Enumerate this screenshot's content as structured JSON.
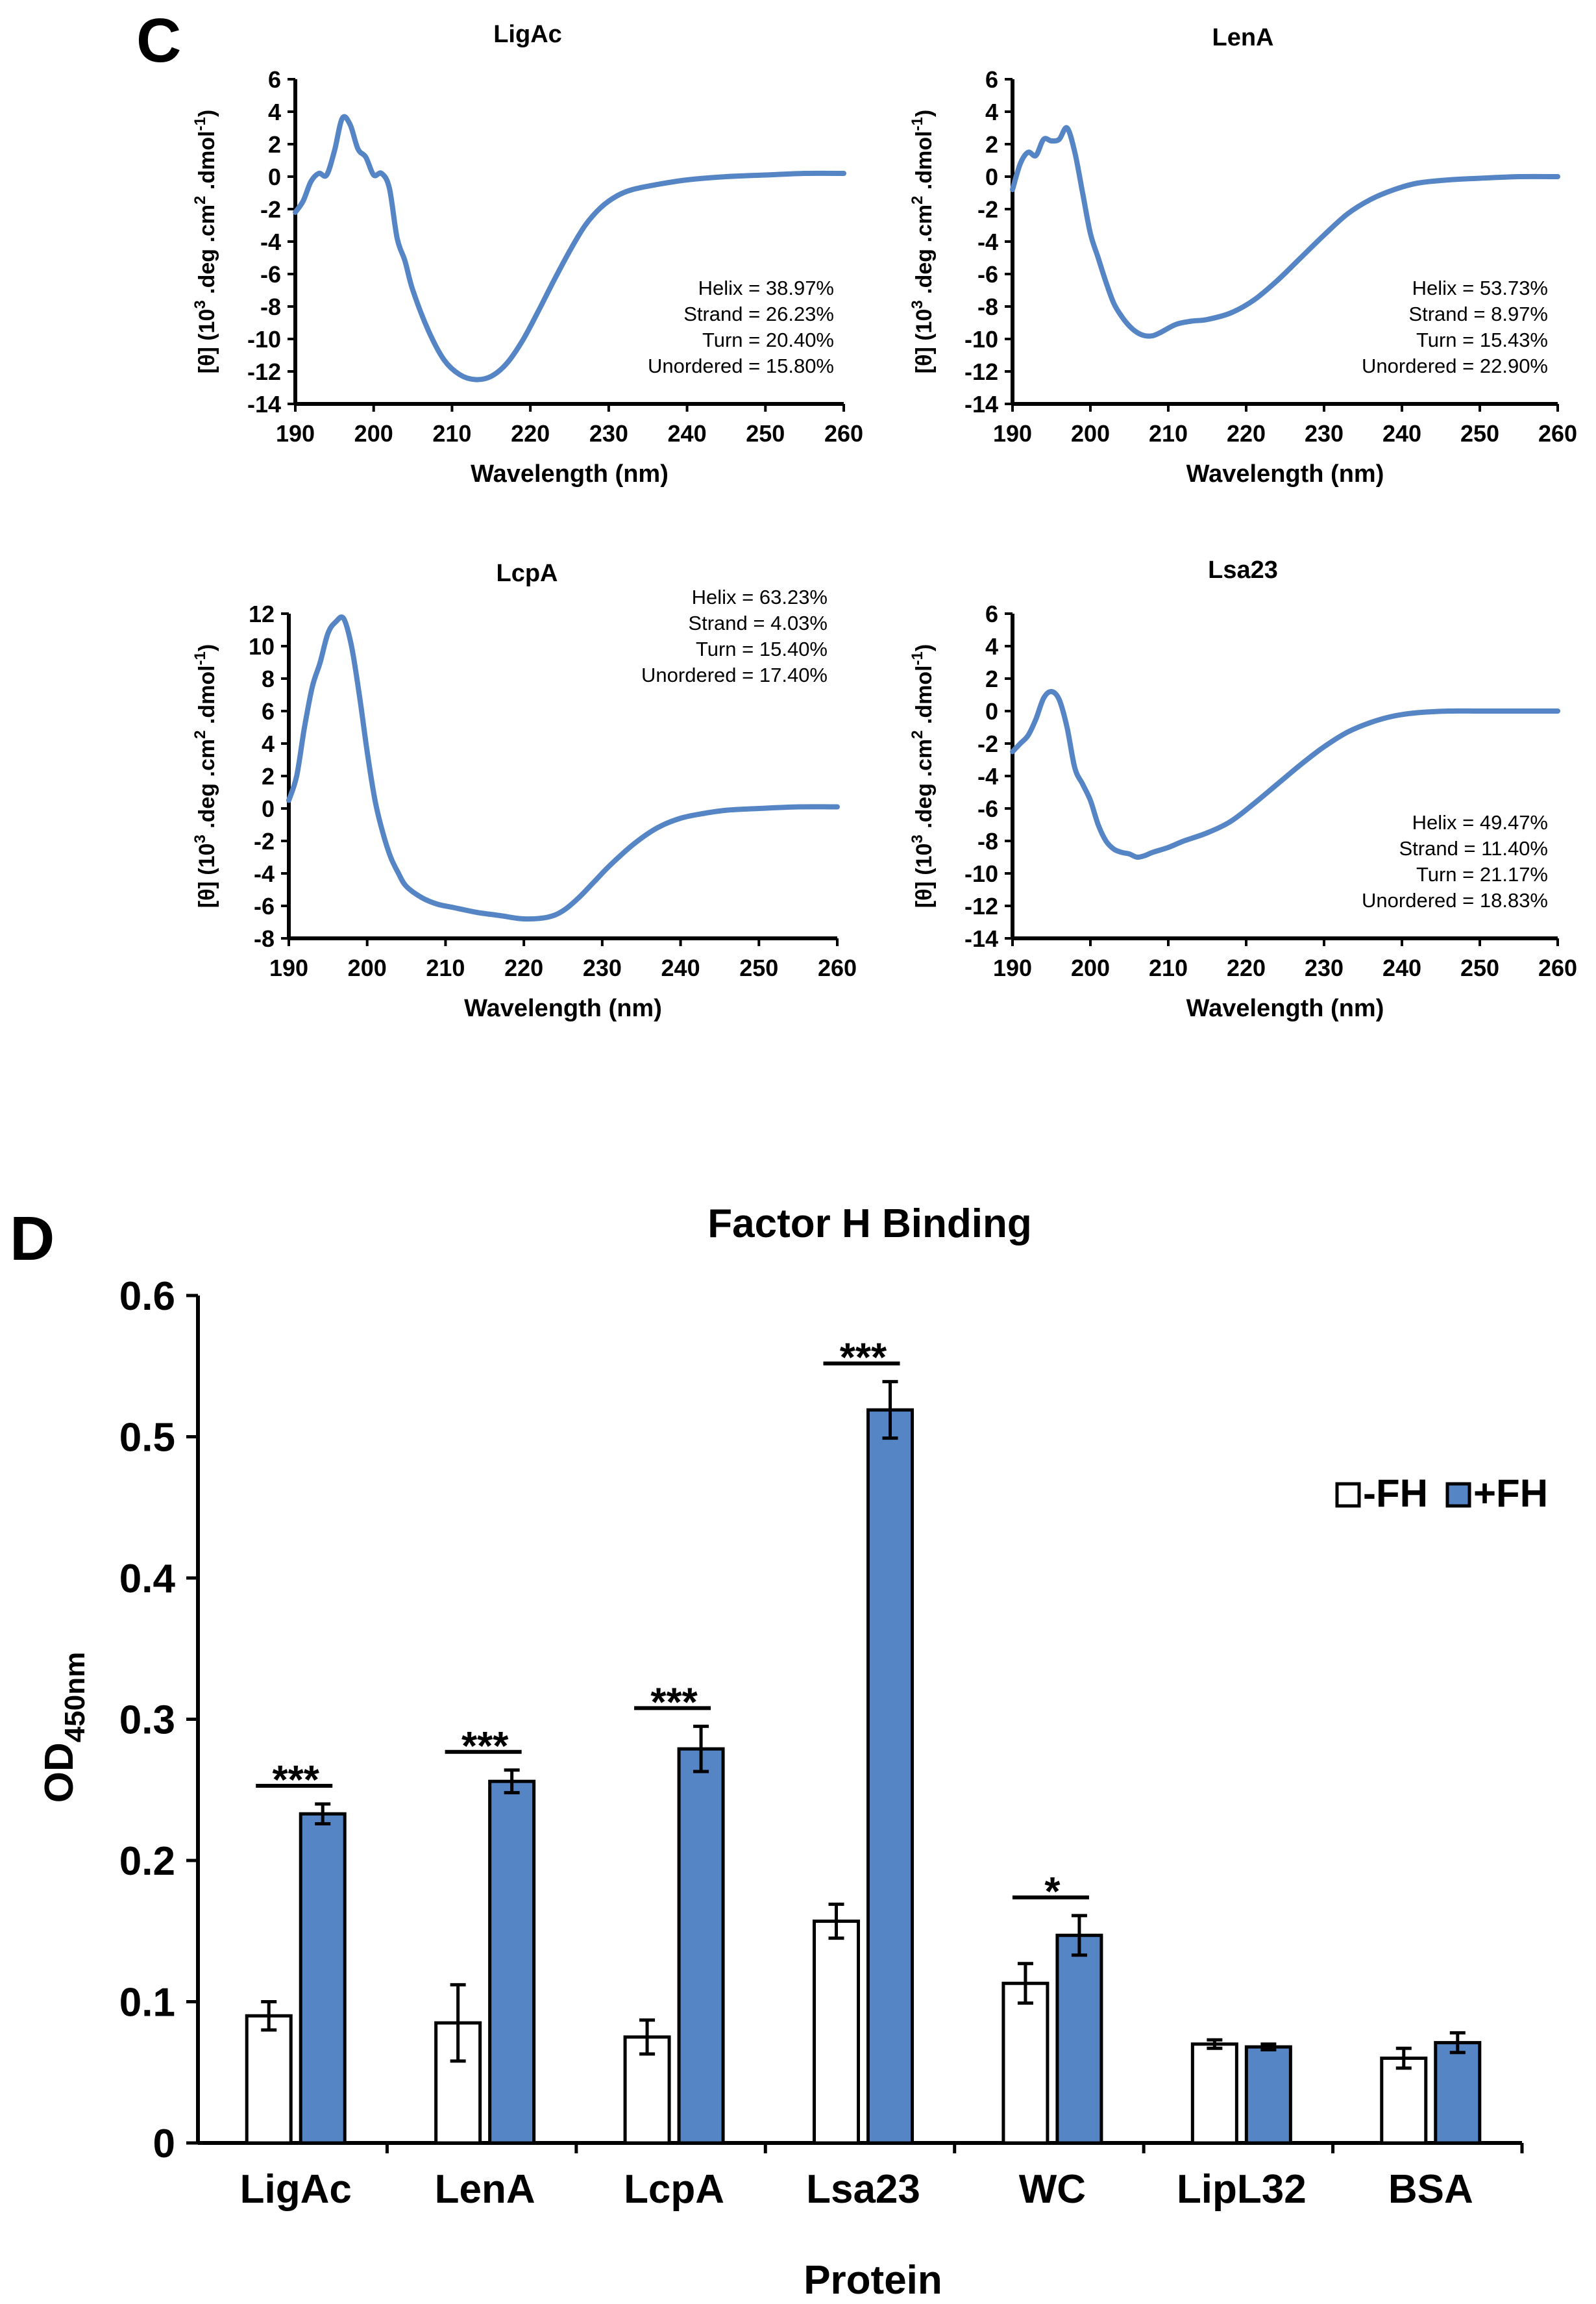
{
  "panel_labels": {
    "c": "C",
    "d": "D"
  },
  "chart_data": [
    {
      "id": "ligac",
      "type": "line",
      "title": "LigAc",
      "xlabel": "Wavelength (nm)",
      "ylabel_main": "[θ] (10",
      "ylabel_sup3": "3",
      "ylabel_mid": " .deg .cm",
      "ylabel_sup2": "2",
      "ylabel_end": " .dmol",
      "ylabel_supneg": "-1",
      "ylabel_close": ")",
      "xlim": [
        190,
        260
      ],
      "ylim": [
        -14,
        6
      ],
      "xticks": [
        "190",
        "200",
        "210",
        "220",
        "230",
        "240",
        "250",
        "260"
      ],
      "yticks": [
        "6",
        "4",
        "2",
        "0",
        "-2",
        "-4",
        "-6",
        "-8",
        "-10",
        "-12",
        "-14"
      ],
      "x": [
        190,
        191,
        192,
        193,
        194,
        195,
        196,
        197,
        198,
        199,
        200,
        201,
        202,
        203,
        204,
        205,
        207,
        209,
        211,
        213,
        215,
        217,
        219,
        221,
        223,
        225,
        227,
        229,
        231,
        233,
        236,
        240,
        245,
        250,
        255,
        260
      ],
      "y": [
        -2.2,
        -1.5,
        -0.3,
        0.2,
        0.1,
        1.6,
        3.6,
        3.2,
        1.7,
        1.2,
        0.1,
        0.2,
        -0.7,
        -3.8,
        -5.2,
        -7.0,
        -9.5,
        -11.3,
        -12.2,
        -12.5,
        -12.3,
        -11.5,
        -10.1,
        -8.3,
        -6.4,
        -4.6,
        -3.0,
        -1.9,
        -1.2,
        -0.8,
        -0.5,
        -0.2,
        0.0,
        0.1,
        0.2,
        0.2
      ],
      "annotations": [
        "Helix = 38.97%",
        "Strand = 26.23%",
        "Turn = 20.40%",
        "Unordered = 15.80%"
      ],
      "annotation_position": "bottom-right",
      "color": "#5585c5"
    },
    {
      "id": "lena",
      "type": "line",
      "title": "LenA",
      "xlabel": "Wavelength (nm)",
      "ylabel_main": "[θ] (10",
      "ylabel_sup3": "3",
      "ylabel_mid": " .deg .cm",
      "ylabel_sup2": "2",
      "ylabel_end": " .dmol",
      "ylabel_supneg": "-1",
      "ylabel_close": ")",
      "xlim": [
        190,
        260
      ],
      "ylim": [
        -14,
        6
      ],
      "xticks": [
        "190",
        "200",
        "210",
        "220",
        "230",
        "240",
        "250",
        "260"
      ],
      "yticks": [
        "6",
        "4",
        "2",
        "0",
        "-2",
        "-4",
        "-6",
        "-8",
        "-10",
        "-12",
        "-14"
      ],
      "x": [
        190,
        191,
        192,
        193,
        194,
        195,
        196,
        197,
        198,
        199,
        200,
        201,
        202,
        203,
        204,
        205,
        206,
        207,
        208,
        209,
        211,
        213,
        215,
        218,
        221,
        224,
        227,
        230,
        233,
        236,
        239,
        242,
        246,
        250,
        255,
        260
      ],
      "y": [
        -0.8,
        0.8,
        1.5,
        1.3,
        2.3,
        2.2,
        2.3,
        3.0,
        1.5,
        -1.0,
        -3.5,
        -5.0,
        -6.5,
        -7.8,
        -8.6,
        -9.2,
        -9.6,
        -9.8,
        -9.8,
        -9.6,
        -9.1,
        -8.9,
        -8.8,
        -8.4,
        -7.6,
        -6.4,
        -5.0,
        -3.6,
        -2.3,
        -1.4,
        -0.8,
        -0.4,
        -0.2,
        -0.1,
        0.0,
        0.0
      ],
      "annotations": [
        "Helix = 53.73%",
        "Strand = 8.97%",
        "Turn = 15.43%",
        "Unordered = 22.90%"
      ],
      "annotation_position": "bottom-right",
      "color": "#5585c5"
    },
    {
      "id": "lcpa",
      "type": "line",
      "title": "LcpA",
      "xlabel": "Wavelength (nm)",
      "ylabel_main": "[θ] (10",
      "ylabel_sup3": "3",
      "ylabel_mid": " .deg .cm",
      "ylabel_sup2": "2",
      "ylabel_end": " .dmol",
      "ylabel_supneg": "-1",
      "ylabel_close": ")",
      "xlim": [
        190,
        260
      ],
      "ylim": [
        -8,
        12
      ],
      "xticks": [
        "190",
        "200",
        "210",
        "220",
        "230",
        "240",
        "250",
        "260"
      ],
      "yticks": [
        "12",
        "10",
        "8",
        "6",
        "4",
        "2",
        "0",
        "-2",
        "-4",
        "-6",
        "-8"
      ],
      "x": [
        190,
        191,
        192,
        193,
        194,
        195,
        196,
        197,
        198,
        199,
        200,
        201,
        202,
        203,
        204,
        205,
        207,
        209,
        211,
        214,
        217,
        220,
        223,
        225,
        227,
        229,
        231,
        234,
        237,
        240,
        243,
        246,
        250,
        255,
        260
      ],
      "y": [
        0.5,
        2.0,
        5.0,
        7.5,
        9.0,
        10.8,
        11.5,
        11.7,
        10.0,
        7.0,
        3.5,
        0.5,
        -1.5,
        -3.0,
        -4.0,
        -4.8,
        -5.5,
        -5.9,
        -6.1,
        -6.4,
        -6.6,
        -6.8,
        -6.7,
        -6.3,
        -5.5,
        -4.5,
        -3.5,
        -2.2,
        -1.2,
        -0.6,
        -0.3,
        -0.1,
        0.0,
        0.1,
        0.1
      ],
      "annotations": [
        "Helix = 63.23%",
        "Strand = 4.03%",
        "Turn = 15.40%",
        "Unordered = 17.40%"
      ],
      "annotation_position": "top-right",
      "color": "#5585c5"
    },
    {
      "id": "lsa23",
      "type": "line",
      "title": "Lsa23",
      "xlabel": "Wavelength (nm)",
      "ylabel_main": "[θ] (10",
      "ylabel_sup3": "3",
      "ylabel_mid": " .deg .cm",
      "ylabel_sup2": "2",
      "ylabel_end": " .dmol",
      "ylabel_supneg": "-1",
      "ylabel_close": ")",
      "xlim": [
        190,
        260
      ],
      "ylim": [
        -14,
        6
      ],
      "xticks": [
        "190",
        "200",
        "210",
        "220",
        "230",
        "240",
        "250",
        "260"
      ],
      "yticks": [
        "6",
        "4",
        "2",
        "0",
        "-2",
        "-4",
        "-6",
        "-8",
        "-10",
        "-12",
        "-14"
      ],
      "x": [
        190,
        191,
        192,
        193,
        194,
        195,
        196,
        197,
        198,
        199,
        200,
        201,
        202,
        203,
        204,
        205,
        206,
        207,
        208,
        210,
        212,
        215,
        218,
        221,
        224,
        227,
        230,
        233,
        236,
        239,
        242,
        246,
        250,
        255,
        260
      ],
      "y": [
        -2.5,
        -2.0,
        -1.5,
        -0.5,
        0.8,
        1.2,
        0.7,
        -1.0,
        -3.5,
        -4.5,
        -5.5,
        -7.0,
        -8.0,
        -8.5,
        -8.7,
        -8.8,
        -9.0,
        -8.9,
        -8.7,
        -8.4,
        -8.0,
        -7.5,
        -6.8,
        -5.7,
        -4.5,
        -3.3,
        -2.2,
        -1.3,
        -0.7,
        -0.3,
        -0.1,
        0.0,
        0.0,
        0.0,
        0.0
      ],
      "annotations": [
        "Helix = 49.47%",
        "Strand = 11.40%",
        "Turn = 21.17%",
        "Unordered = 18.83%"
      ],
      "annotation_position": "bottom-right",
      "color": "#5585c5"
    },
    {
      "id": "fh",
      "type": "bar",
      "title": "Factor H Binding",
      "xlabel": "Protein",
      "ylabel_main": "OD",
      "ylabel_sub": "450nm",
      "ylim": [
        0,
        0.6
      ],
      "yticks": [
        "0",
        "0.1",
        "0.2",
        "0.3",
        "0.4",
        "0.5",
        "0.6"
      ],
      "categories": [
        "LigAc",
        "LenA",
        "LcpA",
        "Lsa23",
        "WC",
        "LipL32",
        "BSA"
      ],
      "series": [
        {
          "name": "-FH",
          "color": "#ffffff",
          "values": [
            0.09,
            0.085,
            0.075,
            0.157,
            0.113,
            0.07,
            0.06
          ],
          "errors": [
            0.01,
            0.027,
            0.012,
            0.012,
            0.014,
            0.003,
            0.007
          ]
        },
        {
          "name": "+FH",
          "color": "#5585c5",
          "values": [
            0.233,
            0.256,
            0.279,
            0.519,
            0.147,
            0.068,
            0.071
          ],
          "errors": [
            0.007,
            0.008,
            0.016,
            0.02,
            0.014,
            0.002,
            0.007
          ]
        }
      ],
      "significance": [
        "***",
        "***",
        "***",
        "***",
        "*",
        "",
        ""
      ],
      "legend_position": "top-right"
    }
  ]
}
